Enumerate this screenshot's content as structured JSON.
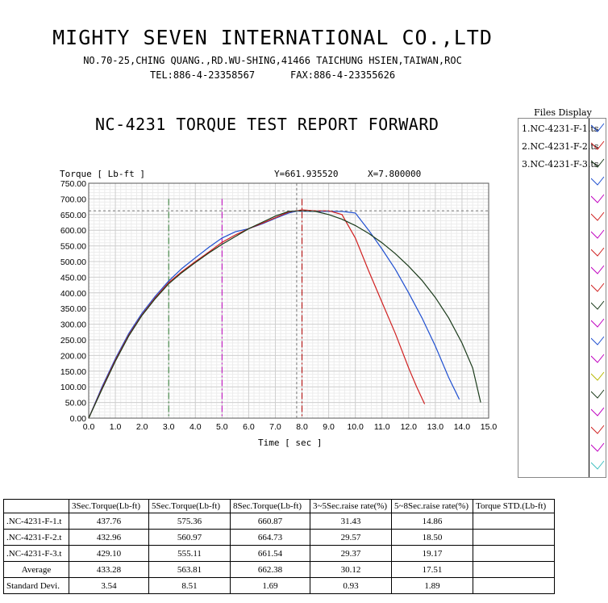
{
  "header": {
    "company": "MIGHTY SEVEN INTERNATIONAL CO.,LTD",
    "address": "NO.70-25,CHING QUANG.,RD.WU-SHING,41466 TAICHUNG HSIEN,TAIWAN,ROC",
    "tel": "TEL:886-4-23358567",
    "fax": "FAX:886-4-23355626",
    "report_title": "NC-4231 TORQUE TEST REPORT FORWARD"
  },
  "cursor": {
    "y_label": "Y=661.935520",
    "x_label": "X=7.800000",
    "y": 661.93552,
    "x": 7.8
  },
  "chart_data": {
    "type": "line",
    "title": "",
    "xlabel": "Time [ sec ]",
    "ylabel": "Torque [ Lb-ft ]",
    "xlim": [
      0,
      15
    ],
    "ylim": [
      0,
      750
    ],
    "x_ticks": [
      "0.0",
      "1.0",
      "2.0",
      "3.0",
      "4.0",
      "5.0",
      "6.0",
      "7.0",
      "8.0",
      "9.0",
      "10.0",
      "11.0",
      "12.0",
      "13.0",
      "14.0",
      "15.0"
    ],
    "y_ticks": [
      "0.00",
      "50.00",
      "100.00",
      "150.00",
      "200.00",
      "250.00",
      "300.00",
      "350.00",
      "400.00",
      "450.00",
      "500.00",
      "550.00",
      "600.00",
      "650.00",
      "700.00",
      "750.00"
    ],
    "grid": true,
    "markers": [
      {
        "x": 3.0,
        "color": "#2e7d32"
      },
      {
        "x": 5.0,
        "color": "#c000c0"
      },
      {
        "x": 8.0,
        "color": "#b00000"
      }
    ],
    "series": [
      {
        "name": "1.NC-4231-F-1.ts",
        "color": "#1f4fd0",
        "x": [
          0,
          0.5,
          1.0,
          1.5,
          2.0,
          2.5,
          3.0,
          3.5,
          4.0,
          4.5,
          5.0,
          5.5,
          6.0,
          6.5,
          7.0,
          7.5,
          7.8,
          8.5,
          9.0,
          9.5,
          10.0,
          10.5,
          11.0,
          11.5,
          12.0,
          12.5,
          13.0,
          13.5,
          13.9
        ],
        "y": [
          0,
          100,
          190,
          270,
          335,
          390,
          438,
          478,
          512,
          545,
          575,
          595,
          605,
          620,
          638,
          655,
          661,
          660,
          660,
          660,
          655,
          600,
          540,
          475,
          400,
          320,
          230,
          130,
          60
        ]
      },
      {
        "name": "2.NC-4231-F-2.ts",
        "color": "#d02020",
        "x": [
          0,
          0.5,
          1.0,
          1.5,
          2.0,
          2.5,
          3.0,
          3.5,
          4.0,
          4.5,
          5.0,
          5.5,
          6.0,
          6.5,
          7.0,
          7.5,
          8.0,
          8.5,
          9.0,
          9.5,
          10.0,
          10.5,
          11.0,
          11.5,
          12.0,
          12.3,
          12.6
        ],
        "y": [
          0,
          95,
          185,
          265,
          330,
          385,
          433,
          468,
          500,
          530,
          561,
          585,
          605,
          622,
          640,
          658,
          665,
          662,
          662,
          650,
          575,
          470,
          370,
          270,
          160,
          100,
          45
        ]
      },
      {
        "name": "3.NC-4231-F-3.ts",
        "color": "#1a3a1a",
        "x": [
          0,
          0.5,
          1.0,
          1.5,
          2.0,
          2.5,
          3.0,
          3.5,
          4.0,
          4.5,
          5.0,
          5.5,
          6.0,
          6.5,
          7.0,
          7.5,
          8.0,
          8.5,
          9.0,
          9.5,
          10.0,
          10.5,
          11.0,
          11.5,
          12.0,
          12.5,
          13.0,
          13.5,
          14.0,
          14.4,
          14.7
        ],
        "y": [
          0,
          92,
          182,
          262,
          328,
          382,
          429,
          465,
          497,
          527,
          555,
          580,
          605,
          625,
          645,
          660,
          662,
          660,
          650,
          635,
          615,
          590,
          560,
          525,
          485,
          440,
          385,
          320,
          240,
          160,
          50
        ]
      }
    ]
  },
  "files": {
    "title": "Files Display",
    "items": [
      "1.NC-4231-F-1.ts",
      "2.NC-4231-F-2.ts",
      "3.NC-4231-F-3.ts"
    ],
    "swatch_colors": [
      "#1f4fd0",
      "#d02020",
      "#1a3a1a",
      "#1f4fd0",
      "#c000c0",
      "#d02020",
      "#c000c0",
      "#d02020",
      "#c000c0",
      "#d02020",
      "#1a3a1a",
      "#c000c0",
      "#1f4fd0",
      "#c000c0",
      "#b8b800",
      "#1a3a1a",
      "#c000c0",
      "#d02020",
      "#c000c0",
      "#40c0c0"
    ]
  },
  "table": {
    "headers": [
      "",
      "3Sec.Torque(Lb-ft)",
      "5Sec.Torque(Lb-ft)",
      "8Sec.Torque(Lb-ft)",
      "3~5Sec.raise rate(%)",
      "5~8Sec.raise rate(%)",
      "Torque STD.(Lb-ft)"
    ],
    "rows": [
      [
        ".NC-4231-F-1.t",
        "437.76",
        "575.36",
        "660.87",
        "31.43",
        "14.86",
        ""
      ],
      [
        ".NC-4231-F-2.t",
        "432.96",
        "560.97",
        "664.73",
        "29.57",
        "18.50",
        ""
      ],
      [
        ".NC-4231-F-3.t",
        "429.10",
        "555.11",
        "661.54",
        "29.37",
        "19.17",
        ""
      ],
      [
        "Average",
        "433.28",
        "563.81",
        "662.38",
        "30.12",
        "17.51",
        ""
      ],
      [
        "Standard Devi.",
        "3.54",
        "8.51",
        "1.69",
        "0.93",
        "1.89",
        ""
      ]
    ]
  }
}
